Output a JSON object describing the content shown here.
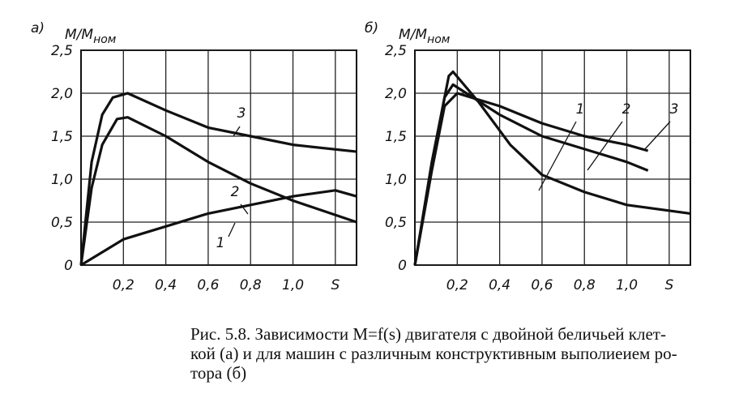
{
  "chart_data": [
    {
      "type": "line",
      "panel_label": "а)",
      "ylabel": "M/M",
      "ylabel_subscript": "ном",
      "xlim": [
        0,
        1.3
      ],
      "ylim": [
        0,
        2.5
      ],
      "xticks": [
        {
          "value": 0.2,
          "label": "0,2"
        },
        {
          "value": 0.4,
          "label": "0,4"
        },
        {
          "value": 0.6,
          "label": "0,6"
        },
        {
          "value": 0.8,
          "label": "0,8"
        },
        {
          "value": 1.0,
          "label": "1,0"
        },
        {
          "value": 1.2,
          "label": "S"
        }
      ],
      "yticks": [
        0,
        {
          "value": 0.5,
          "label": "0,5"
        },
        {
          "value": 1.0,
          "label": "1,0"
        },
        {
          "value": 1.5,
          "label": "1,5"
        },
        {
          "value": 2.0,
          "label": "2,0"
        },
        {
          "value": 2.5,
          "label": "2,5"
        }
      ],
      "grid": true,
      "series": [
        {
          "name": "1",
          "color": "#111111",
          "x": [
            0,
            0.1,
            0.2,
            0.4,
            0.6,
            0.8,
            1.0,
            1.2,
            1.3
          ],
          "values": [
            0,
            0.15,
            0.3,
            0.45,
            0.6,
            0.7,
            0.8,
            0.87,
            0.8
          ]
        },
        {
          "name": "2",
          "color": "#111111",
          "x": [
            0,
            0.05,
            0.1,
            0.17,
            0.22,
            0.4,
            0.6,
            0.8,
            1.0,
            1.3
          ],
          "values": [
            0,
            0.9,
            1.4,
            1.7,
            1.72,
            1.5,
            1.2,
            0.95,
            0.75,
            0.5
          ]
        },
        {
          "name": "3",
          "color": "#111111",
          "x": [
            0,
            0.05,
            0.1,
            0.15,
            0.22,
            0.4,
            0.6,
            0.8,
            1.0,
            1.3
          ],
          "values": [
            0,
            1.2,
            1.75,
            1.95,
            2.0,
            1.8,
            1.6,
            1.5,
            1.4,
            1.32
          ]
        }
      ]
    },
    {
      "type": "line",
      "panel_label": "б)",
      "ylabel": "M/M",
      "ylabel_subscript": "ном",
      "xlim": [
        0,
        1.3
      ],
      "ylim": [
        0,
        2.5
      ],
      "xticks": [
        {
          "value": 0.2,
          "label": "0,2"
        },
        {
          "value": 0.4,
          "label": "0,4"
        },
        {
          "value": 0.6,
          "label": "0,6"
        },
        {
          "value": 0.8,
          "label": "0,8"
        },
        {
          "value": 1.0,
          "label": "1,0"
        },
        {
          "value": 1.2,
          "label": "S"
        }
      ],
      "yticks": [
        0,
        {
          "value": 0.5,
          "label": "0,5"
        },
        {
          "value": 1.0,
          "label": "1,0"
        },
        {
          "value": 1.5,
          "label": "1,5"
        },
        {
          "value": 2.0,
          "label": "2,0"
        },
        {
          "value": 2.5,
          "label": "2,5"
        }
      ],
      "grid": true,
      "series": [
        {
          "name": "1",
          "color": "#111111",
          "x": [
            0,
            0.08,
            0.16,
            0.18,
            0.3,
            0.45,
            0.6,
            0.8,
            1.0,
            1.3
          ],
          "values": [
            0,
            1.2,
            2.2,
            2.25,
            1.9,
            1.4,
            1.05,
            0.85,
            0.7,
            0.6
          ]
        },
        {
          "name": "2",
          "color": "#111111",
          "x": [
            0,
            0.08,
            0.14,
            0.18,
            0.4,
            0.6,
            0.8,
            1.0,
            1.1
          ],
          "values": [
            0,
            1.15,
            1.95,
            2.1,
            1.75,
            1.5,
            1.35,
            1.2,
            1.1
          ]
        },
        {
          "name": "3",
          "color": "#111111",
          "x": [
            0,
            0.08,
            0.14,
            0.2,
            0.4,
            0.6,
            0.8,
            1.0,
            1.1
          ],
          "values": [
            0,
            1.1,
            1.85,
            2.0,
            1.85,
            1.65,
            1.5,
            1.4,
            1.33
          ]
        }
      ]
    }
  ],
  "caption": {
    "lines": [
      "Рис. 5.8. Зависимости M=f(s) двигателя с двойной беличьей клет-",
      "кой (а) и для машин с различным конструктивным выполиеием ро-",
      "тора (б)"
    ]
  }
}
